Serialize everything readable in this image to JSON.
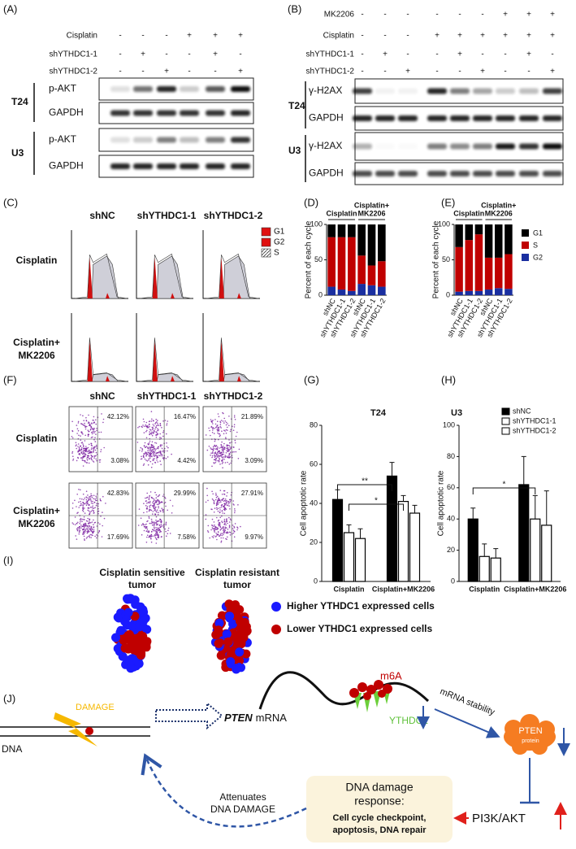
{
  "panel_labels": [
    "(A)",
    "(B)",
    "(C)",
    "(D)",
    "(E)",
    "(F)",
    "(G)",
    "(H)",
    "(I)",
    "(J)"
  ],
  "panel_a": {
    "conditions": [
      {
        "label": "Cisplatin",
        "signs": [
          "-",
          "-",
          "-",
          "+",
          "+",
          "+"
        ]
      },
      {
        "label": "shYTHDC1-1",
        "signs": [
          "-",
          "+",
          "-",
          "-",
          "+",
          "-"
        ]
      },
      {
        "label": "shYTHDC1-2",
        "signs": [
          "-",
          "-",
          "+",
          "-",
          "-",
          "+"
        ]
      }
    ],
    "cell_lines": [
      "T24",
      "U3"
    ],
    "blots": [
      "p-AKT",
      "GAPDH",
      "p-AKT",
      "GAPDH"
    ]
  },
  "panel_b": {
    "conditions": [
      {
        "label": "MK2206",
        "signs": [
          "-",
          "-",
          "-",
          "-",
          "-",
          "-",
          "+",
          "+",
          "+"
        ]
      },
      {
        "label": "Cisplatin",
        "signs": [
          "-",
          "-",
          "-",
          "+",
          "+",
          "+",
          "+",
          "+",
          "+"
        ]
      },
      {
        "label": "shYTHDC1-1",
        "signs": [
          "-",
          "+",
          "-",
          "-",
          "+",
          "-",
          "-",
          "+",
          "-"
        ]
      },
      {
        "label": "shYTHDC1-2",
        "signs": [
          "-",
          "-",
          "+",
          "-",
          "-",
          "+",
          "-",
          "-",
          "+"
        ]
      }
    ],
    "cell_lines": [
      "T24",
      "U3"
    ],
    "blots": [
      "γ-H2AX",
      "GAPDH",
      "γ-H2AX",
      "GAPDH"
    ]
  },
  "panel_c": {
    "columns": [
      "shNC",
      "shYTHDC1-1",
      "shYTHDC1-2"
    ],
    "rows": [
      [
        "Cisplatin"
      ],
      [
        "Cisplatin+",
        "MK2206"
      ]
    ],
    "legend": [
      "G1",
      "G2",
      "S"
    ]
  },
  "panel_f": {
    "columns": [
      "shNC",
      "shYTHDC1-1",
      "shYTHDC1-2"
    ],
    "rows": [
      [
        "Cisplatin"
      ],
      [
        "Cisplatin+",
        "MK2206"
      ]
    ],
    "quadrant_labels": [
      [
        "42.12%",
        "3.08%"
      ],
      [
        "16.47%",
        "4.42%"
      ],
      [
        "21.89%",
        "3.09%"
      ],
      [
        "42.83%",
        "17.69%"
      ],
      [
        "29.99%",
        "7.58%"
      ],
      [
        "27.91%",
        "9.97%"
      ]
    ]
  },
  "panel_i": {
    "groups": [
      [
        "Cisplatin sensitive",
        "tumor"
      ],
      [
        "Cisplatin resistant",
        "tumor"
      ]
    ],
    "legend": [
      "Higher YTHDC1 expressed cells",
      "Lower YTHDC1 expressed cells"
    ]
  },
  "panel_j": {
    "damage": "DAMAGE",
    "dna": "DNA",
    "gene": "PTEN",
    "mrna": "mRNA",
    "m6a": "m6A",
    "reader": "YTHDC1",
    "stability": "mRNA stability",
    "protein": [
      "PTEN",
      "protein"
    ],
    "pathway": "PI3K/AKT",
    "response_title": [
      "DNA damage",
      "response:"
    ],
    "response_body": [
      "Cell cycle checkpoint,",
      "apoptosis, DNA repair"
    ],
    "feedback": [
      "Attenuates",
      "DNA DAMAGE"
    ]
  },
  "chart_data": [
    {
      "type": "stacked_bar",
      "ylabel": "Percent of each cycle",
      "categories": [
        "shNC",
        "shYTHDC1-1",
        "shYTHDC1-2",
        "shNC",
        "shYTHDC1-1",
        "shYTHDC1-2"
      ],
      "group_labels": [
        [
          "Cisplatin"
        ],
        [
          "Cisplatin+",
          "MK2206"
        ]
      ],
      "series": [
        {
          "name": "G1",
          "color": "#000000",
          "values": [
            18,
            18,
            18,
            44,
            58,
            52
          ]
        },
        {
          "name": "S",
          "color": "#c00000",
          "values": [
            70,
            74,
            76,
            40,
            28,
            36
          ]
        },
        {
          "name": "G2",
          "color": "#1a2fa0",
          "values": [
            12,
            8,
            6,
            16,
            14,
            12
          ]
        }
      ],
      "ylim": [
        0,
        100
      ],
      "yticks": [
        0,
        50,
        100
      ],
      "legend": false
    },
    {
      "type": "stacked_bar",
      "ylabel": "Percent of each cycle",
      "categories": [
        "shNC",
        "shYTHDC1-1",
        "shYTHDC1-2",
        "shNC",
        "shYTHDC1-1",
        "shYTHDC1-2"
      ],
      "group_labels": [
        [
          "Cisplatin"
        ],
        [
          "Cisplatin+",
          "MK2206"
        ]
      ],
      "series": [
        {
          "name": "G1",
          "color": "#000000",
          "values": [
            32,
            22,
            14,
            47,
            47,
            42
          ]
        },
        {
          "name": "S",
          "color": "#c00000",
          "values": [
            63,
            72,
            80,
            45,
            43,
            49
          ]
        },
        {
          "name": "G2",
          "color": "#1a2fa0",
          "values": [
            5,
            6,
            6,
            8,
            10,
            9
          ]
        }
      ],
      "ylim": [
        0,
        100
      ],
      "yticks": [
        0,
        50,
        100
      ],
      "legend": true
    },
    {
      "type": "bar",
      "title": "T24",
      "ylabel": "Cell apoptotic rate",
      "categories": [
        "Cisplatin",
        "Cisplatin+MK2206"
      ],
      "series": [
        {
          "name": "shNC",
          "color": "#000000",
          "values": [
            42,
            54
          ],
          "errors": [
            5,
            7
          ]
        },
        {
          "name": "shYTHDC1-1",
          "color": "#ffffff",
          "values": [
            25,
            41
          ],
          "errors": [
            4,
            3
          ]
        },
        {
          "name": "shYTHDC1-2",
          "color": "#ffffff",
          "values": [
            22,
            35
          ],
          "errors": [
            5,
            4
          ]
        }
      ],
      "annotations": [
        "**",
        "*"
      ],
      "ylim": [
        0,
        80
      ],
      "yticks": [
        0,
        20,
        40,
        60,
        80
      ],
      "legend": false
    },
    {
      "type": "bar",
      "title": "U3",
      "ylabel": "Cell apoptotic rate",
      "categories": [
        "Cisplatin",
        "Cisplatin+MK2206"
      ],
      "series": [
        {
          "name": "shNC",
          "color": "#000000",
          "values": [
            40,
            62
          ],
          "errors": [
            7,
            18
          ]
        },
        {
          "name": "shYTHDC1-1",
          "color": "#ffffff",
          "values": [
            16,
            40
          ],
          "errors": [
            8,
            15
          ]
        },
        {
          "name": "shYTHDC1-2",
          "color": "#ffffff",
          "values": [
            15,
            36
          ],
          "errors": [
            6,
            22
          ]
        }
      ],
      "annotations": [
        "*"
      ],
      "ylim": [
        0,
        100
      ],
      "yticks": [
        0,
        20,
        40,
        60,
        80,
        100
      ],
      "legend": true
    }
  ]
}
